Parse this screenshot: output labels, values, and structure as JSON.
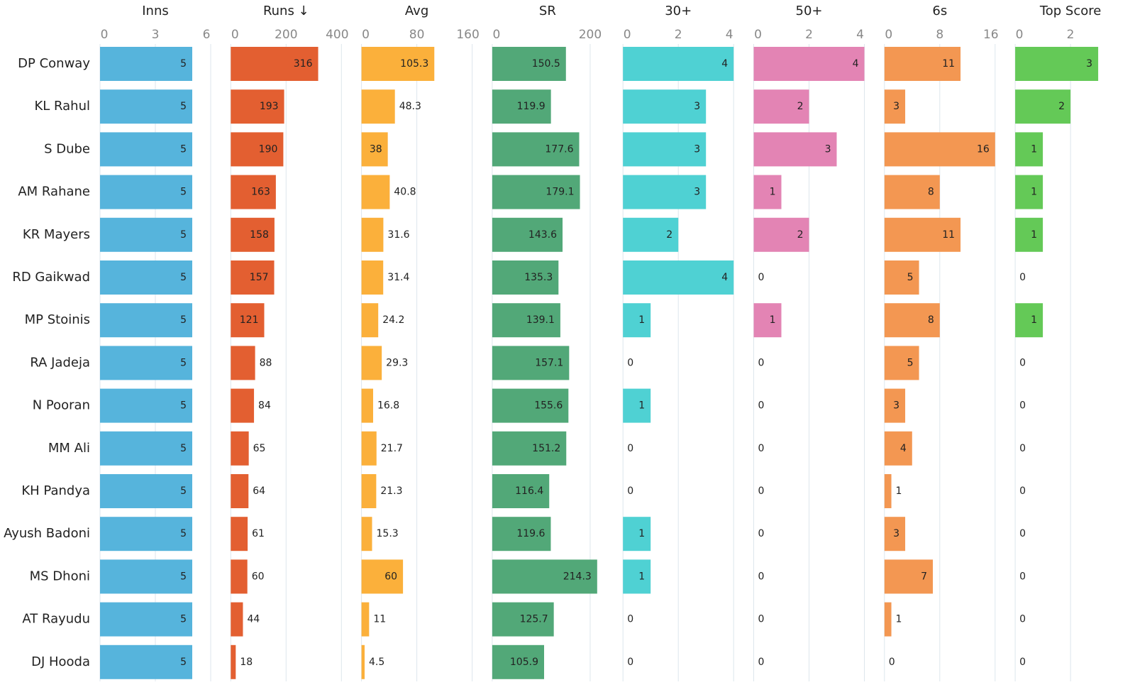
{
  "chart_data": {
    "type": "bar",
    "categories": [
      "DP Conway",
      "KL Rahul",
      "S Dube",
      "AM Rahane",
      "KR Mayers",
      "RD Gaikwad",
      "MP Stoinis",
      "RA Jadeja",
      "N Pooran",
      "MM Ali",
      "KH Pandya",
      "Ayush Badoni",
      "MS Dhoni",
      "AT Rayudu",
      "DJ Hooda"
    ],
    "grid": true,
    "panels": [
      {
        "title": "Inns",
        "color": "#56b4dc",
        "xlim": [
          0,
          6
        ],
        "xticks": [
          0,
          3,
          6
        ],
        "values": [
          5,
          5,
          5,
          5,
          5,
          5,
          5,
          5,
          5,
          5,
          5,
          5,
          5,
          5,
          5
        ]
      },
      {
        "title": "Runs ↓",
        "color": "#e35f31",
        "xlim": [
          0,
          400
        ],
        "xticks": [
          0,
          200,
          400
        ],
        "values": [
          316,
          193,
          190,
          163,
          158,
          157,
          121,
          88,
          84,
          65,
          64,
          61,
          60,
          44,
          18
        ]
      },
      {
        "title": "Avg",
        "color": "#fbb03b",
        "xlim": [
          0,
          160
        ],
        "xticks": [
          0,
          80,
          160
        ],
        "values": [
          105.3,
          48.3,
          38,
          40.8,
          31.6,
          31.4,
          24.2,
          29.3,
          16.8,
          21.7,
          21.3,
          15.3,
          60,
          11,
          4.5
        ]
      },
      {
        "title": "SR",
        "color": "#52a878",
        "xlim": [
          0,
          226
        ],
        "xticks": [
          0,
          200
        ],
        "values": [
          150.5,
          119.9,
          177.6,
          179.1,
          143.6,
          135.3,
          139.1,
          157.1,
          155.6,
          151.2,
          116.4,
          119.6,
          214.3,
          125.7,
          105.9
        ]
      },
      {
        "title": "30+",
        "color": "#4fd1d3",
        "xlim": [
          0,
          4
        ],
        "xticks": [
          0,
          2,
          4
        ],
        "values": [
          4,
          3,
          3,
          3,
          2,
          4,
          1,
          0,
          1,
          0,
          0,
          1,
          1,
          0,
          0
        ]
      },
      {
        "title": "50+",
        "color": "#e384b4",
        "xlim": [
          0,
          4
        ],
        "xticks": [
          0,
          2,
          4
        ],
        "values": [
          4,
          2,
          3,
          1,
          2,
          0,
          1,
          0,
          0,
          0,
          0,
          0,
          0,
          0,
          0
        ]
      },
      {
        "title": "6s",
        "color": "#f39752",
        "xlim": [
          0,
          16
        ],
        "xticks": [
          0,
          8,
          16
        ],
        "values": [
          11,
          3,
          16,
          8,
          11,
          5,
          8,
          5,
          3,
          4,
          1,
          3,
          7,
          1,
          0
        ]
      },
      {
        "title": "Top Score",
        "color": "#64c957",
        "xlim": [
          0,
          4
        ],
        "xticks": [
          0,
          2
        ],
        "values": [
          3,
          2,
          1,
          1,
          1,
          0,
          1,
          0,
          0,
          0,
          0,
          0,
          0,
          0,
          0
        ]
      }
    ]
  }
}
